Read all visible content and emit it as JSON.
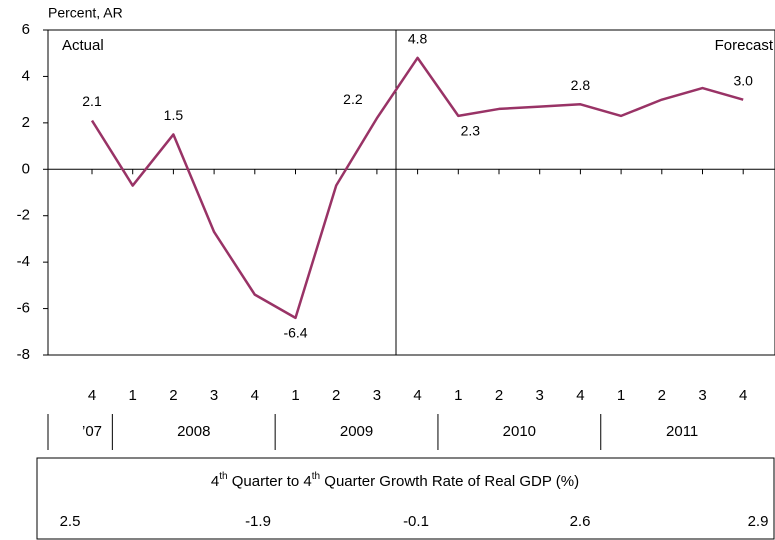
{
  "chart_data": {
    "type": "line",
    "y_axis_label": "Percent, AR",
    "annotations": [
      "Actual",
      "Forecast"
    ],
    "categories": [
      "4",
      "1",
      "2",
      "3",
      "4",
      "1",
      "2",
      "3",
      "4",
      "1",
      "2",
      "3",
      "4",
      "1",
      "2",
      "3",
      "4"
    ],
    "years": [
      "’07",
      "2008",
      "2009",
      "2010",
      "2011"
    ],
    "series": [
      {
        "name": "Real GDP growth",
        "color": "#993366",
        "values": [
          2.1,
          -0.7,
          1.5,
          -2.7,
          -5.4,
          -6.4,
          -0.7,
          2.2,
          4.8,
          2.3,
          2.6,
          2.7,
          2.8,
          2.3,
          3.0,
          3.5,
          3.0
        ],
        "value_labels": [
          "2.1",
          null,
          "1.5",
          null,
          null,
          "-6.4",
          null,
          "2.2",
          "4.8",
          "2.3",
          null,
          null,
          "2.8",
          null,
          null,
          null,
          "3.0"
        ]
      }
    ],
    "ylim": [
      -8,
      6
    ],
    "yticks": [
      -8,
      -6,
      -4,
      -2,
      0,
      2,
      4,
      6
    ]
  },
  "annual_table": {
    "title_parts": [
      "4",
      "th",
      " Quarter to 4",
      "th",
      " Quarter Growth Rate of Real GDP (%)"
    ],
    "values": [
      2.5,
      -1.9,
      -0.1,
      2.6,
      2.9
    ]
  }
}
